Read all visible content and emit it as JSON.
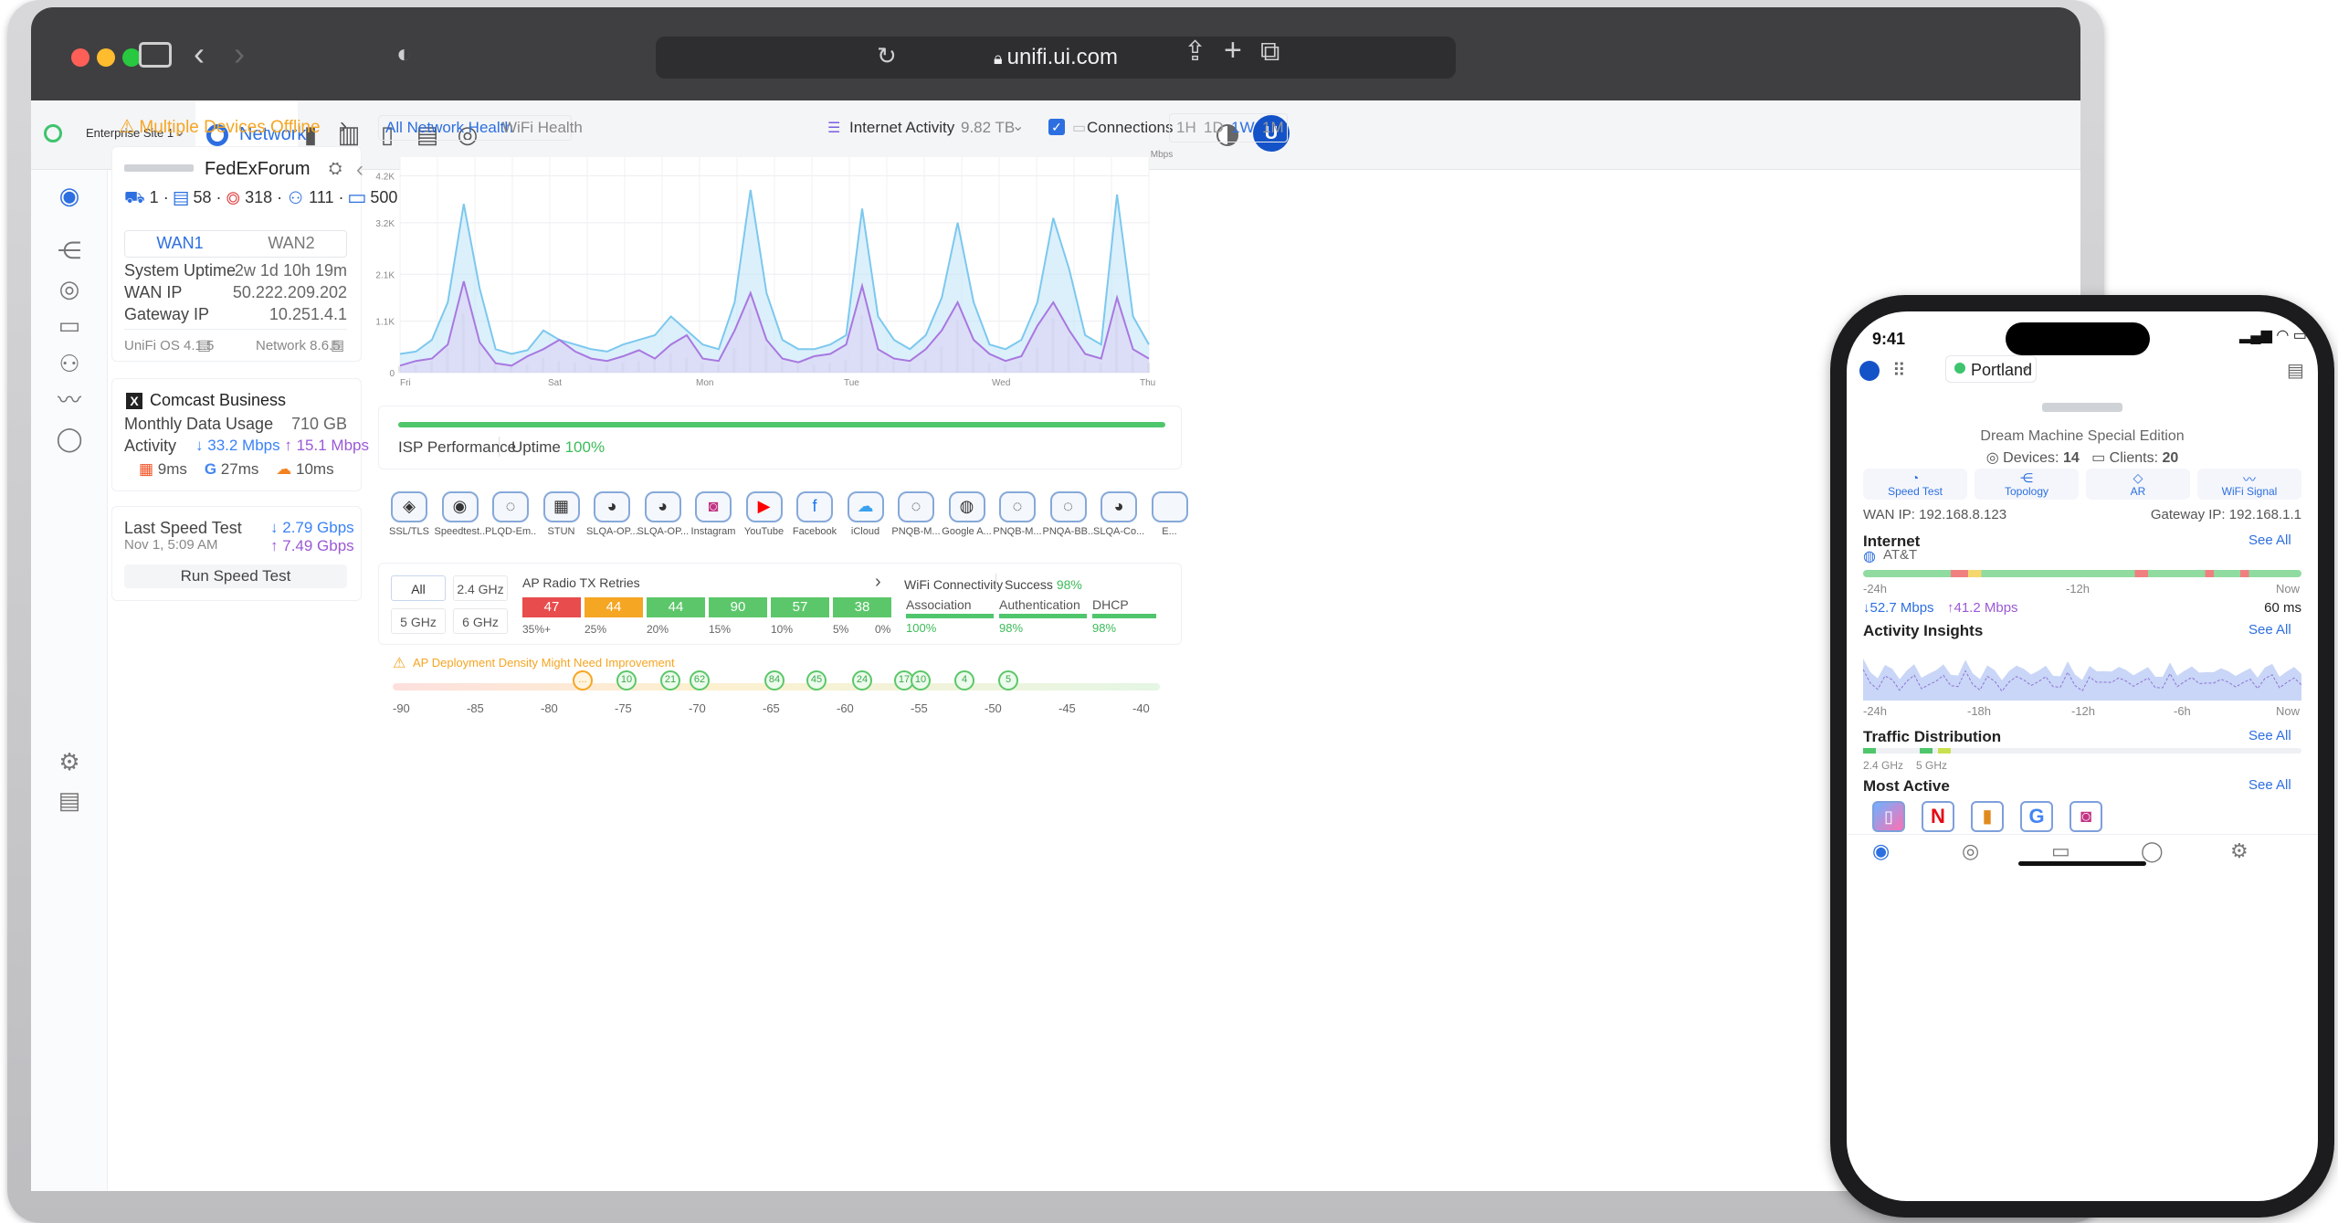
{
  "browser": {
    "url": "unifi.ui.com"
  },
  "topbar": {
    "site": "Enterprise Site 1",
    "app_tab": "Network"
  },
  "alert": {
    "text": "Multiple Devices Offline"
  },
  "device": {
    "name": "FedExForum",
    "counts": [
      "1",
      "58",
      "318",
      "111",
      "500"
    ],
    "wan_tabs": [
      "WAN1",
      "WAN2"
    ],
    "rows": [
      {
        "label": "System Uptime",
        "value": "2w 1d 10h 19m"
      },
      {
        "label": "WAN IP",
        "value": "50.222.209.202"
      },
      {
        "label": "Gateway IP",
        "value": "10.251.4.1"
      }
    ],
    "unifi_os": "UniFi OS 4.1.5",
    "network_ver": "Network 8.6.5"
  },
  "isp": {
    "name": "Comcast Business",
    "usage_label": "Monthly Data Usage",
    "usage_value": "710 GB",
    "activity_label": "Activity",
    "down": "33.2 Mbps",
    "up": "15.1 Mbps",
    "latency": [
      "9ms",
      "27ms",
      "10ms"
    ]
  },
  "speedtest": {
    "title": "Last Speed Test",
    "date": "Nov 1, 5:09 AM",
    "down": "2.79 Gbps",
    "up": "7.49 Gbps",
    "button": "Run Speed Test"
  },
  "health": {
    "tabs": [
      "All Network Health",
      "WiFi Health"
    ],
    "internet_activity": "Internet Activity",
    "internet_value": "9.82 TB",
    "connections": "Connections",
    "ranges": [
      "1H",
      "1D",
      "1W",
      "1M"
    ]
  },
  "chart_data": {
    "type": "area",
    "unit": "Mbps",
    "y_ticks": [
      "0",
      "1.1K",
      "2.1K",
      "3.2K",
      "4.2K"
    ],
    "x_labels": [
      "Fri",
      "Sat",
      "Mon",
      "Tue",
      "Wed",
      "Thu"
    ],
    "series": [
      {
        "values": [
          400,
          450,
          700,
          1500,
          3600,
          1800,
          500,
          400,
          480,
          900,
          700,
          600,
          500,
          450,
          600,
          700,
          800,
          1200,
          900,
          600,
          500,
          1500,
          3900,
          1700,
          700,
          500,
          500,
          600,
          800,
          3500,
          1200,
          700,
          500,
          800,
          1600,
          3200,
          1500,
          600,
          500,
          700,
          1500,
          3300,
          2200,
          800,
          600,
          3800,
          1200,
          600
        ]
      },
      {
        "values": [
          150,
          250,
          300,
          600,
          1950,
          650,
          200,
          150,
          350,
          500,
          700,
          450,
          300,
          250,
          350,
          480,
          300,
          600,
          800,
          300,
          250,
          900,
          1700,
          700,
          300,
          220,
          350,
          400,
          600,
          1850,
          500,
          300,
          250,
          500,
          900,
          1500,
          700,
          400,
          250,
          350,
          1000,
          1500,
          900,
          400,
          300,
          1600,
          500,
          300
        ]
      }
    ]
  },
  "isp_perf": {
    "label": "ISP Performance",
    "uptime_label": "Uptime",
    "uptime_value": "100%"
  },
  "apps": [
    "SSL/TLS",
    "Speedtest...",
    "PLQD-Em...",
    "STUN",
    "SLQA-OP...",
    "SLQA-OP...",
    "Instagram",
    "YouTube",
    "Facebook",
    "iCloud",
    "PNQB-M...",
    "Google A...",
    "PNQB-M...",
    "PNQA-BB...",
    "SLQA-Co...",
    "E..."
  ],
  "radio": {
    "bands": [
      "All",
      "2.4 GHz",
      "5 GHz",
      "6 GHz"
    ],
    "title": "AP Radio TX Retries",
    "values": [
      "47",
      "44",
      "44",
      "90",
      "57",
      "38"
    ],
    "pcts": [
      "35%+",
      "25%",
      "20%",
      "15%",
      "10%",
      "5%",
      "0%"
    ]
  },
  "wifi_conn": {
    "title": "WiFi Connectivity",
    "success_label": "Success",
    "success": "98%",
    "stages": [
      {
        "label": "Association",
        "value": "100%"
      },
      {
        "label": "Authentication",
        "value": "98%"
      },
      {
        "label": "DHCP",
        "value": "98%"
      }
    ]
  },
  "density": {
    "warning": "AP Deployment Density Might Need Improvement",
    "dots": [
      "...",
      "10",
      "21",
      "62",
      "84",
      "45",
      "24",
      "17",
      "10",
      "4",
      "5"
    ],
    "x_labels": [
      "-90",
      "-85",
      "-80",
      "-75",
      "-70",
      "-65",
      "-60",
      "-55",
      "-50",
      "-45",
      "-40"
    ]
  },
  "phone": {
    "time": "9:41",
    "site": "Portland",
    "device": "Dream Machine Special Edition",
    "devices_label": "Devices:",
    "devices": "14",
    "clients_label": "Clients:",
    "clients": "20",
    "actions": [
      "Speed Test",
      "Topology",
      "AR",
      "WiFi Signal"
    ],
    "wan_ip": "WAN IP: 192.168.8.123",
    "gateway_ip": "Gateway IP: 192.168.1.1",
    "internet_title": "Internet",
    "see_all": "See All",
    "isp": "AT&T",
    "time_labels": [
      "-24h",
      "-12h",
      "Now"
    ],
    "down": "52.7 Mbps",
    "up": "41.2 Mbps",
    "latency": "60 ms",
    "activity_title": "Activity Insights",
    "activity_labels": [
      "-24h",
      "-18h",
      "-12h",
      "-6h",
      "Now"
    ],
    "traffic_title": "Traffic Distribution",
    "bands": [
      "2.4 GHz",
      "5 GHz"
    ],
    "most_active_title": "Most Active"
  }
}
